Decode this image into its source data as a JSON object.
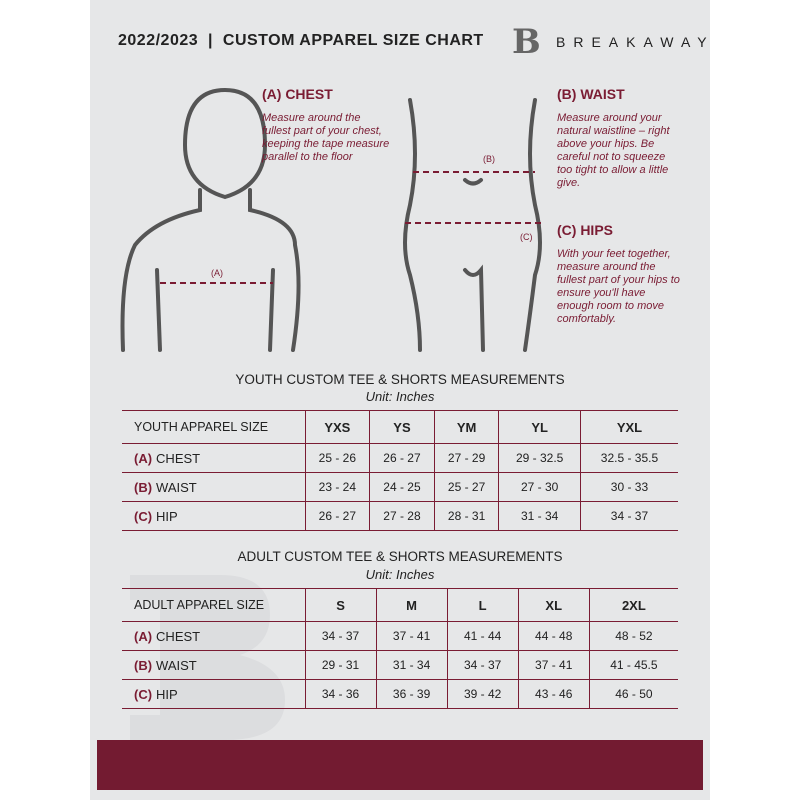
{
  "header": {
    "title": "2022/2023  |  CUSTOM APPAREL SIZE CHART",
    "brand": "BREAKAWAY",
    "logo_letter": "B"
  },
  "measures": {
    "chest": {
      "heading": "(A) CHEST",
      "desc": "Measure around the fullest part of your chest, keeping the tape measure parallel to the floor",
      "marker": "(A)"
    },
    "waist": {
      "heading": "(B) WAIST",
      "desc": "Measure around your natural waistline – right above your hips. Be careful not to squeeze too tight to allow a little give.",
      "marker": "(B)"
    },
    "hips": {
      "heading": "(C) HIPS",
      "desc": "With your feet together, measure around the fullest part of your hips to ensure you'll have enough room to move comfortably.",
      "marker": "(C)"
    }
  },
  "youth": {
    "title": "YOUTH CUSTOM TEE & SHORTS MEASUREMENTS",
    "unit": "Unit: Inches",
    "header": [
      "YOUTH APPAREL SIZE",
      "YXS",
      "YS",
      "YM",
      "YL",
      "YXL"
    ],
    "rows": [
      {
        "letter": "(A)",
        "label": "CHEST",
        "values": [
          "25 - 26",
          "26 - 27",
          "27 - 29",
          "29 - 32.5",
          "32.5 - 35.5"
        ]
      },
      {
        "letter": "(B)",
        "label": "WAIST",
        "values": [
          "23 - 24",
          "24 - 25",
          "25 - 27",
          "27 - 30",
          "30 - 33"
        ]
      },
      {
        "letter": "(C)",
        "label": "HIP",
        "values": [
          "26 - 27",
          "27 - 28",
          "28 - 31",
          "31 - 34",
          "34 - 37"
        ]
      }
    ]
  },
  "adult": {
    "title": "ADULT CUSTOM TEE & SHORTS MEASUREMENTS",
    "unit": "Unit: Inches",
    "header": [
      "ADULT APPAREL SIZE",
      "S",
      "M",
      "L",
      "XL",
      "2XL"
    ],
    "rows": [
      {
        "letter": "(A)",
        "label": "CHEST",
        "values": [
          "34 - 37",
          "37 - 41",
          "41 - 44",
          "44 - 48",
          "48 - 52"
        ]
      },
      {
        "letter": "(B)",
        "label": "WAIST",
        "values": [
          "29 - 31",
          "31 - 34",
          "34 - 37",
          "37 - 41",
          "41 - 45.5"
        ]
      },
      {
        "letter": "(C)",
        "label": "HIP",
        "values": [
          "34 - 36",
          "36 - 39",
          "39 - 42",
          "43 - 46",
          "46 - 50"
        ]
      }
    ]
  },
  "colors": {
    "accent": "#7a1c33",
    "panel": "#e6e7e8",
    "footer": "#731b31"
  }
}
